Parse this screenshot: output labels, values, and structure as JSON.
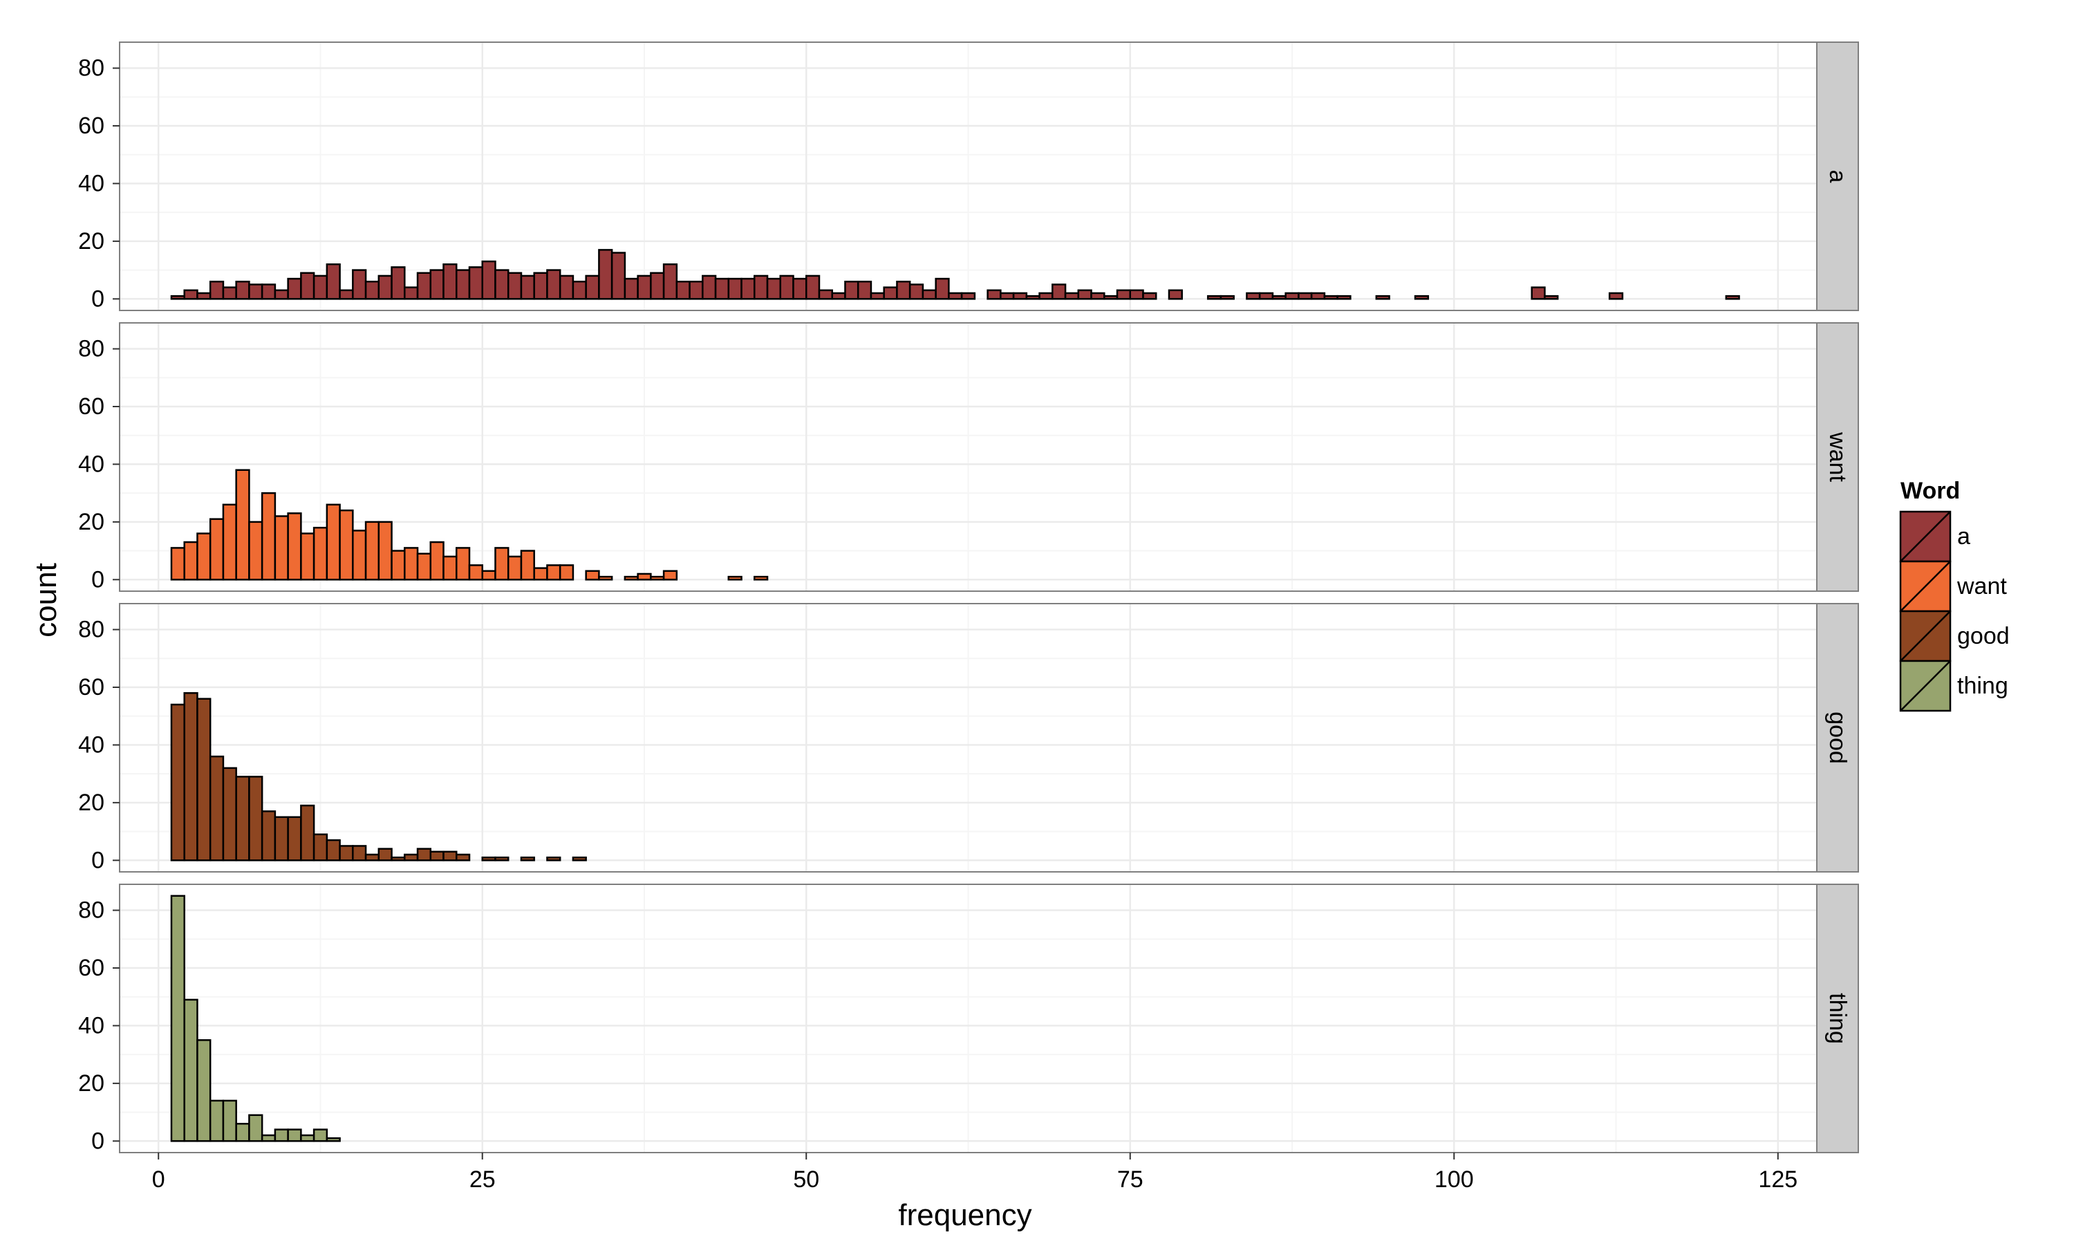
{
  "chart_data": {
    "type": "bar",
    "xlabel": "frequency",
    "ylabel": "count",
    "xlim": [
      -3,
      128
    ],
    "ylim": [
      -4,
      89
    ],
    "x_ticks": [
      0,
      25,
      50,
      75,
      100,
      125
    ],
    "y_ticks": [
      0,
      20,
      40,
      60,
      80
    ],
    "bin_start": 0,
    "bin_width": 1,
    "num_bins": 122,
    "grid": true,
    "legend": {
      "title": "Word",
      "position": "right",
      "entries": [
        "a",
        "want",
        "good",
        "thing"
      ]
    },
    "series": [
      {
        "name": "a",
        "color": "#96393a",
        "values": [
          0,
          1,
          3,
          2,
          6,
          4,
          6,
          5,
          5,
          3,
          7,
          9,
          8,
          12,
          3,
          10,
          6,
          8,
          11,
          4,
          9,
          10,
          12,
          10,
          11,
          13,
          10,
          9,
          8,
          9,
          10,
          8,
          6,
          8,
          17,
          16,
          7,
          8,
          9,
          12,
          6,
          6,
          8,
          7,
          7,
          7,
          8,
          7,
          8,
          7,
          8,
          3,
          2,
          6,
          6,
          2,
          4,
          6,
          5,
          3,
          7,
          2,
          2,
          0,
          3,
          2,
          2,
          1,
          2,
          5,
          2,
          3,
          2,
          1,
          3,
          3,
          2,
          0,
          3,
          0,
          0,
          1,
          1,
          0,
          2,
          2,
          1,
          2,
          2,
          2,
          1,
          1,
          0,
          0,
          1,
          0,
          0,
          1,
          0,
          0,
          0,
          0,
          0,
          0,
          0,
          0,
          4,
          1,
          0,
          0,
          0,
          0,
          2,
          0,
          0,
          0,
          0,
          0,
          0,
          0,
          0,
          1
        ]
      },
      {
        "name": "want",
        "color": "#ef6b33",
        "values": [
          0,
          11,
          13,
          16,
          21,
          26,
          38,
          20,
          30,
          22,
          23,
          16,
          18,
          26,
          24,
          17,
          20,
          20,
          10,
          11,
          9,
          13,
          8,
          11,
          5,
          3,
          11,
          8,
          10,
          4,
          5,
          5,
          0,
          3,
          1,
          0,
          1,
          2,
          1,
          3,
          0,
          0,
          0,
          0,
          1,
          0,
          1,
          0,
          0,
          0,
          0,
          0,
          0,
          0,
          0,
          0,
          0,
          0,
          0,
          0,
          0,
          0,
          0,
          0,
          0,
          0,
          0,
          0,
          0,
          0,
          0,
          0,
          0,
          0,
          0,
          0,
          0,
          0,
          0,
          0,
          0,
          0,
          0,
          0,
          0,
          0,
          0,
          0,
          0,
          0,
          0,
          0,
          0,
          0,
          0,
          0,
          0,
          0,
          0,
          0,
          0,
          0,
          0,
          0,
          0,
          0,
          0,
          0,
          0,
          0,
          0,
          0,
          0,
          0,
          0,
          0,
          0,
          0,
          0,
          0,
          0,
          0
        ]
      },
      {
        "name": "good",
        "color": "#8e4621",
        "values": [
          0,
          54,
          58,
          56,
          36,
          32,
          29,
          29,
          17,
          15,
          15,
          19,
          9,
          7,
          5,
          5,
          2,
          4,
          1,
          2,
          4,
          3,
          3,
          2,
          0,
          1,
          1,
          0,
          1,
          0,
          1,
          0,
          1,
          0,
          0,
          0,
          0,
          0,
          0,
          0,
          0,
          0,
          0,
          0,
          0,
          0,
          0,
          0,
          0,
          0,
          0,
          0,
          0,
          0,
          0,
          0,
          0,
          0,
          0,
          0,
          0,
          0,
          0,
          0,
          0,
          0,
          0,
          0,
          0,
          0,
          0,
          0,
          0,
          0,
          0,
          0,
          0,
          0,
          0,
          0,
          0,
          0,
          0,
          0,
          0,
          0,
          0,
          0,
          0,
          0,
          0,
          0,
          0,
          0,
          0,
          0,
          0,
          0,
          0,
          0,
          0,
          0,
          0,
          0,
          0,
          0,
          0,
          0,
          0,
          0,
          0,
          0,
          0,
          0,
          0,
          0,
          0,
          0,
          0,
          0,
          0,
          0
        ]
      },
      {
        "name": "thing",
        "color": "#97a46e",
        "values": [
          0,
          85,
          49,
          35,
          14,
          14,
          6,
          9,
          2,
          4,
          4,
          2,
          4,
          1,
          0,
          0,
          0,
          0,
          0,
          0,
          0,
          0,
          0,
          0,
          0,
          0,
          0,
          0,
          0,
          0,
          0,
          0,
          0,
          0,
          0,
          0,
          0,
          0,
          0,
          0,
          0,
          0,
          0,
          0,
          0,
          0,
          0,
          0,
          0,
          0,
          0,
          0,
          0,
          0,
          0,
          0,
          0,
          0,
          0,
          0,
          0,
          0,
          0,
          0,
          0,
          0,
          0,
          0,
          0,
          0,
          0,
          0,
          0,
          0,
          0,
          0,
          0,
          0,
          0,
          0,
          0,
          0,
          0,
          0,
          0,
          0,
          0,
          0,
          0,
          0,
          0,
          0,
          0,
          0,
          0,
          0,
          0,
          0,
          0,
          0,
          0,
          0,
          0,
          0,
          0,
          0,
          0,
          0,
          0,
          0,
          0,
          0,
          0,
          0,
          0,
          0,
          0,
          0,
          0,
          0,
          0,
          0
        ]
      }
    ]
  },
  "style": {
    "panel_background": "#ffffff",
    "grid_major_color": "#ebebeb",
    "grid_minor_color": "#f5f5f5",
    "panel_border_color": "#7f7f7f",
    "strip_background": "#cccccc",
    "bar_outline_color": "#000000"
  }
}
